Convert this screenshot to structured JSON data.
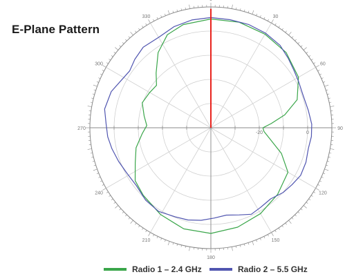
{
  "title": "E-Plane Pattern",
  "colors": {
    "radio1": "#3aa64a",
    "radio2": "#5055b0",
    "marker": "#e8221c",
    "grid": "#cfcfcf",
    "axis": "#888888",
    "tick_label": "#777777"
  },
  "chart_data": {
    "type": "polar-line",
    "title": "E-Plane Pattern",
    "angle_unit": "degrees",
    "angle_zero": "top",
    "angle_direction": "clockwise",
    "angle_labels": [
      {
        "angle": 0,
        "text": "0"
      },
      {
        "angle": 30,
        "text": "30"
      },
      {
        "angle": 60,
        "text": "60"
      },
      {
        "angle": 90,
        "text": "90"
      },
      {
        "angle": 120,
        "text": "120"
      },
      {
        "angle": 150,
        "text": "150"
      },
      {
        "angle": 180,
        "text": "180"
      },
      {
        "angle": 210,
        "text": "210"
      },
      {
        "angle": 240,
        "text": "240"
      },
      {
        "angle": 270,
        "text": "270"
      },
      {
        "angle": 300,
        "text": "300"
      },
      {
        "angle": 330,
        "text": "330"
      }
    ],
    "radial_range": [
      -40,
      10
    ],
    "radial_ticks": [
      -40,
      -30,
      -20,
      -10,
      0,
      10
    ],
    "radial_labels": [
      {
        "value": -20,
        "text": "-20"
      },
      {
        "value": 0,
        "text": "0"
      }
    ],
    "grid": true,
    "legend_position": "bottom",
    "series": [
      {
        "name": "Radio 1 – 2.4 GHz",
        "color_key": "radio1",
        "points": [
          [
            0,
            5.0
          ],
          [
            15,
            5.2
          ],
          [
            30,
            4.7
          ],
          [
            45,
            4.0
          ],
          [
            60,
            1.8
          ],
          [
            72,
            -2.5
          ],
          [
            80,
            -9.0
          ],
          [
            86,
            -15.0
          ],
          [
            90,
            -18.5
          ],
          [
            94,
            -18.0
          ],
          [
            100,
            -15.5
          ],
          [
            110,
            -9.0
          ],
          [
            120,
            -3.2
          ],
          [
            135,
            -1.0
          ],
          [
            150,
            1.0
          ],
          [
            165,
            2.6
          ],
          [
            180,
            3.7
          ],
          [
            195,
            3.3
          ],
          [
            210,
            1.5
          ],
          [
            225,
            -0.5
          ],
          [
            235,
            -1.8
          ],
          [
            245,
            -5.5
          ],
          [
            255,
            -8.0
          ],
          [
            265,
            -11.5
          ],
          [
            272,
            -13.5
          ],
          [
            280,
            -12.0
          ],
          [
            290,
            -9.8
          ],
          [
            300,
            -10.8
          ],
          [
            308,
            -11.5
          ],
          [
            315,
            -8.0
          ],
          [
            325,
            -2.0
          ],
          [
            335,
            2.5
          ],
          [
            345,
            4.2
          ],
          [
            360,
            5.0
          ]
        ]
      },
      {
        "name": "Radio 2 – 5.5 GHz",
        "color_key": "radio2",
        "points": [
          [
            0,
            5.6
          ],
          [
            10,
            5.4
          ],
          [
            20,
            5.5
          ],
          [
            30,
            5.2
          ],
          [
            40,
            4.5
          ],
          [
            48,
            3.0
          ],
          [
            55,
            1.8
          ],
          [
            62,
            1.0
          ],
          [
            70,
            0.4
          ],
          [
            80,
            0.9
          ],
          [
            88,
            1.7
          ],
          [
            95,
            1.7
          ],
          [
            102,
            1.2
          ],
          [
            110,
            1.8
          ],
          [
            118,
            2.0
          ],
          [
            125,
            1.0
          ],
          [
            132,
            0.1
          ],
          [
            140,
            -1.6
          ],
          [
            148,
            -1.2
          ],
          [
            155,
            -0.5
          ],
          [
            162,
            -2.1
          ],
          [
            170,
            -3.3
          ],
          [
            178,
            -2.6
          ],
          [
            186,
            -1.5
          ],
          [
            194,
            -0.7
          ],
          [
            202,
            -0.3
          ],
          [
            212,
            0.8
          ],
          [
            222,
            0.3
          ],
          [
            232,
            -1.0
          ],
          [
            242,
            -0.5
          ],
          [
            250,
            0.6
          ],
          [
            258,
            1.8
          ],
          [
            265,
            2.8
          ],
          [
            272,
            3.3
          ],
          [
            280,
            4.6
          ],
          [
            290,
            3.8
          ],
          [
            298,
            1.9
          ],
          [
            305,
            1.0
          ],
          [
            312,
            2.3
          ],
          [
            320,
            3.5
          ],
          [
            330,
            3.2
          ],
          [
            340,
            4.5
          ],
          [
            350,
            5.3
          ],
          [
            360,
            5.6
          ]
        ]
      },
      {
        "name": "",
        "color_key": "marker",
        "type": "radial-marker",
        "angle": 0,
        "value_from": -40,
        "value_to": 9.2
      }
    ]
  },
  "legend": {
    "items": [
      {
        "label": "Radio 1 – 2.4 GHz",
        "color_key": "radio1"
      },
      {
        "label": "Radio 2 – 5.5 GHz",
        "color_key": "radio2"
      }
    ]
  }
}
